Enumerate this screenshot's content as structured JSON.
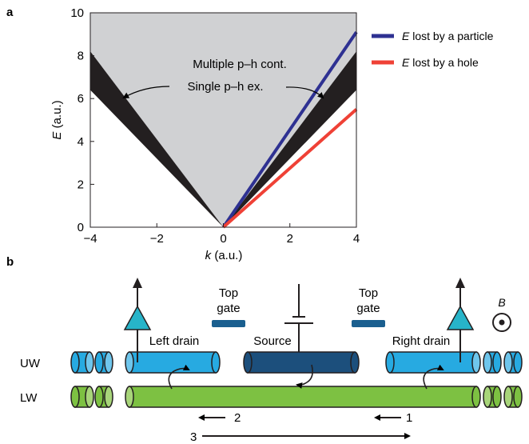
{
  "panel_a": {
    "label": "a",
    "chart_data": {
      "type": "line",
      "title": "",
      "xlabel": "k (a.u.)",
      "xlabel_italic": "k",
      "xlabel_unit": " (a.u.)",
      "ylabel_italic": "E",
      "ylabel_unit": " (a.u.)",
      "xlim": [
        -4,
        4
      ],
      "ylim": [
        0,
        10
      ],
      "xticks": [
        -4,
        -2,
        0,
        2,
        4
      ],
      "xtick_labels": [
        "−4",
        "−2",
        "0",
        "2",
        "4"
      ],
      "yticks": [
        0,
        2,
        4,
        6,
        8,
        10
      ],
      "ytick_labels": [
        "0",
        "2",
        "4",
        "6",
        "8",
        "10"
      ],
      "regions": [
        {
          "name": "Multiple p–h cont.",
          "color": "#d0d1d3",
          "polygon": [
            [
              -4,
              10
            ],
            [
              4,
              10
            ],
            [
              4,
              8.2
            ],
            [
              0,
              0
            ],
            [
              -4,
              8.2
            ]
          ]
        },
        {
          "name": "Single p–h ex.",
          "color": "#231f20",
          "polygon": [
            [
              -4,
              8.2
            ],
            [
              0,
              0
            ],
            [
              -4,
              6.4
            ]
          ]
        },
        {
          "name": "Single p–h ex. (k>0)",
          "color": "#231f20",
          "polygon": [
            [
              0,
              0
            ],
            [
              4,
              8.2
            ],
            [
              4,
              6.4
            ]
          ]
        }
      ],
      "series": [
        {
          "name": "E lost by a particle",
          "color": "#2e3192",
          "x": [
            0,
            4
          ],
          "y": [
            0,
            9.1
          ]
        },
        {
          "name": "E lost by a hole",
          "color": "#ef4136",
          "x": [
            0,
            4
          ],
          "y": [
            0,
            5.5
          ]
        }
      ],
      "annotations": [
        "Multiple p–h cont.",
        "Single p–h ex."
      ],
      "legend_placement": "right"
    },
    "legend": [
      {
        "italic": "E",
        "text": " lost by a particle",
        "color": "#2e3192"
      },
      {
        "italic": "E",
        "text": " lost by a hole",
        "color": "#ef4136"
      }
    ]
  },
  "panel_b": {
    "label": "b",
    "labels": {
      "top_gate_left_1": "Top",
      "top_gate_left_2": "gate",
      "top_gate_right_1": "Top",
      "top_gate_right_2": "gate",
      "left_drain": "Left drain",
      "source": "Source",
      "right_drain": "Right drain",
      "uw": "UW",
      "lw": "LW",
      "b_field": "B",
      "arrow_1": "1",
      "arrow_2": "2",
      "arrow_3": "3"
    },
    "colors": {
      "uw_light": "#27aae1",
      "source_dark": "#1c4f7c",
      "gate": "#1a5f8f",
      "lw_green": "#7dc142"
    }
  }
}
